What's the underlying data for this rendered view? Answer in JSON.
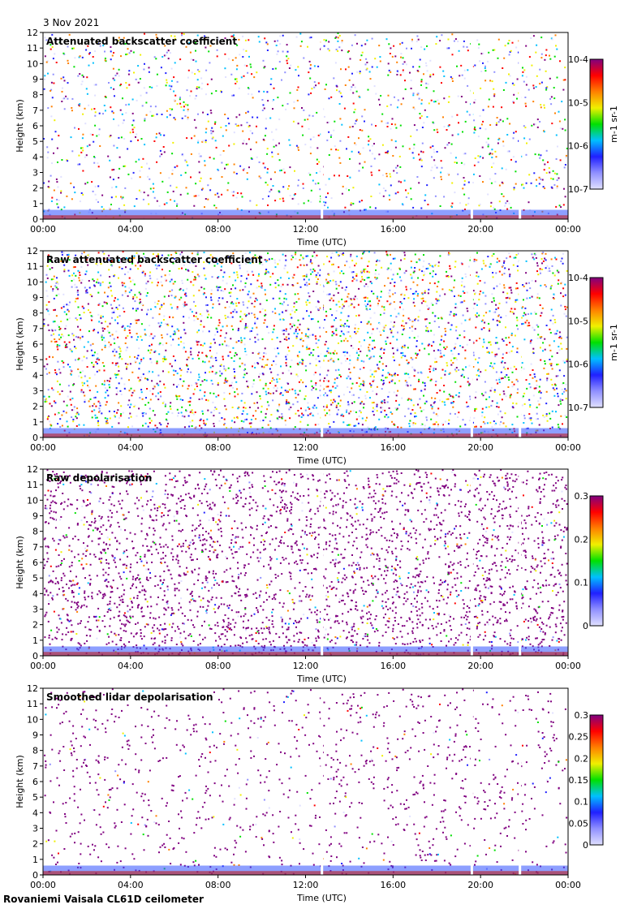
{
  "header": {
    "date": "3 Nov 2021"
  },
  "footer": {
    "instrument": "Rovaniemi Vaisala CL61D ceilometer"
  },
  "chart_data": [
    {
      "type": "heatmap",
      "title": "Attenuated backscatter coefficient",
      "xlabel": "Time (UTC)",
      "ylabel": "Height (km)",
      "xticks": [
        "00:00",
        "04:00",
        "08:00",
        "12:00",
        "16:00",
        "20:00",
        "00:00"
      ],
      "yticks": [
        "0",
        "1",
        "2",
        "3",
        "4",
        "5",
        "6",
        "7",
        "8",
        "9",
        "10",
        "11",
        "12"
      ],
      "xlim_hours": [
        0,
        24
      ],
      "ylim_km": [
        0,
        12
      ],
      "colorbar": {
        "scale": "log",
        "range": [
          1e-07,
          0.0001
        ],
        "ticks": [
          "10-7",
          "10-6",
          "10-5",
          "10-4"
        ],
        "unit": "m-1 sr-1"
      },
      "noise_level": 0.3,
      "data_gaps_hours": [
        12.75,
        19.6,
        21.8
      ]
    },
    {
      "type": "heatmap",
      "title": "Raw attenuated backscatter coefficient",
      "xlabel": "Time (UTC)",
      "ylabel": "Height (km)",
      "xticks": [
        "00:00",
        "04:00",
        "08:00",
        "12:00",
        "16:00",
        "20:00",
        "00:00"
      ],
      "yticks": [
        "0",
        "1",
        "2",
        "3",
        "4",
        "5",
        "6",
        "7",
        "8",
        "9",
        "10",
        "11",
        "12"
      ],
      "xlim_hours": [
        0,
        24
      ],
      "ylim_km": [
        0,
        12
      ],
      "colorbar": {
        "scale": "log",
        "range": [
          1e-07,
          0.0001
        ],
        "ticks": [
          "10-7",
          "10-6",
          "10-5",
          "10-4"
        ],
        "unit": "m-1 sr-1"
      },
      "noise_level": 1.0,
      "data_gaps_hours": [
        12.75,
        19.6,
        21.8
      ]
    },
    {
      "type": "heatmap",
      "title": "Raw depolarisation",
      "xlabel": "Time (UTC)",
      "ylabel": "Height (km)",
      "xticks": [
        "00:00",
        "04:00",
        "08:00",
        "12:00",
        "16:00",
        "20:00",
        "00:00"
      ],
      "yticks": [
        "0",
        "1",
        "2",
        "3",
        "4",
        "5",
        "6",
        "7",
        "8",
        "9",
        "10",
        "11",
        "12"
      ],
      "xlim_hours": [
        0,
        24
      ],
      "ylim_km": [
        0,
        12
      ],
      "colorbar": {
        "scale": "linear",
        "range": [
          0,
          0.3
        ],
        "ticks": [
          "0",
          "0.1",
          "0.2",
          "0.3"
        ],
        "unit": ""
      },
      "noise_level": 0.9,
      "data_gaps_hours": [
        12.75,
        19.6,
        21.8
      ]
    },
    {
      "type": "heatmap",
      "title": "Smoothed lidar depolarisation",
      "xlabel": "Time (UTC)",
      "ylabel": "Height (km)",
      "xticks": [
        "00:00",
        "04:00",
        "08:00",
        "12:00",
        "16:00",
        "20:00",
        "00:00"
      ],
      "yticks": [
        "0",
        "1",
        "2",
        "3",
        "4",
        "5",
        "6",
        "7",
        "8",
        "9",
        "10",
        "11",
        "12"
      ],
      "xlim_hours": [
        0,
        24
      ],
      "ylim_km": [
        0,
        12
      ],
      "colorbar": {
        "scale": "linear",
        "range": [
          0,
          0.3
        ],
        "ticks": [
          "0",
          "0.05",
          "0.1",
          "0.15",
          "0.2",
          "0.25",
          "0.3"
        ],
        "unit": ""
      },
      "noise_level": 0.08,
      "data_gaps_hours": [
        12.75,
        19.6,
        21.8
      ]
    }
  ]
}
